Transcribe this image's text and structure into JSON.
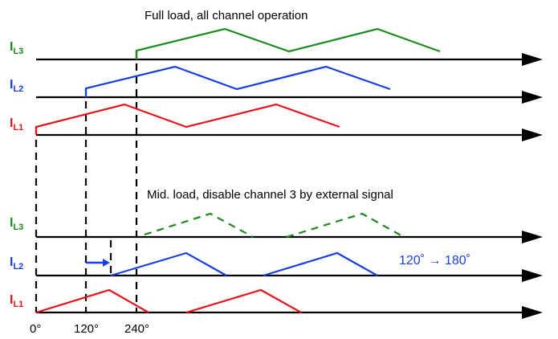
{
  "colors": {
    "l1": "#e8121c",
    "l2": "#1a3fe0",
    "l3": "#1b8a1b",
    "axis": "#000000"
  },
  "top": {
    "title": "Full load, all channel operation",
    "labels": {
      "l3": {
        "main": "I",
        "sub": "L3"
      },
      "l2": {
        "main": "I",
        "sub": "L2"
      },
      "l1": {
        "main": "I",
        "sub": "L1"
      }
    }
  },
  "bottom": {
    "title": "Mid. load, disable channel 3 by external signal",
    "labels": {
      "l3": {
        "main": "I",
        "sub": "L3"
      },
      "l2": {
        "main": "I",
        "sub": "L2"
      },
      "l1": {
        "main": "I",
        "sub": "L1"
      }
    },
    "phase_note": "120˚ → 180˚"
  },
  "ticks": [
    "0°",
    "120°",
    "240°"
  ]
}
